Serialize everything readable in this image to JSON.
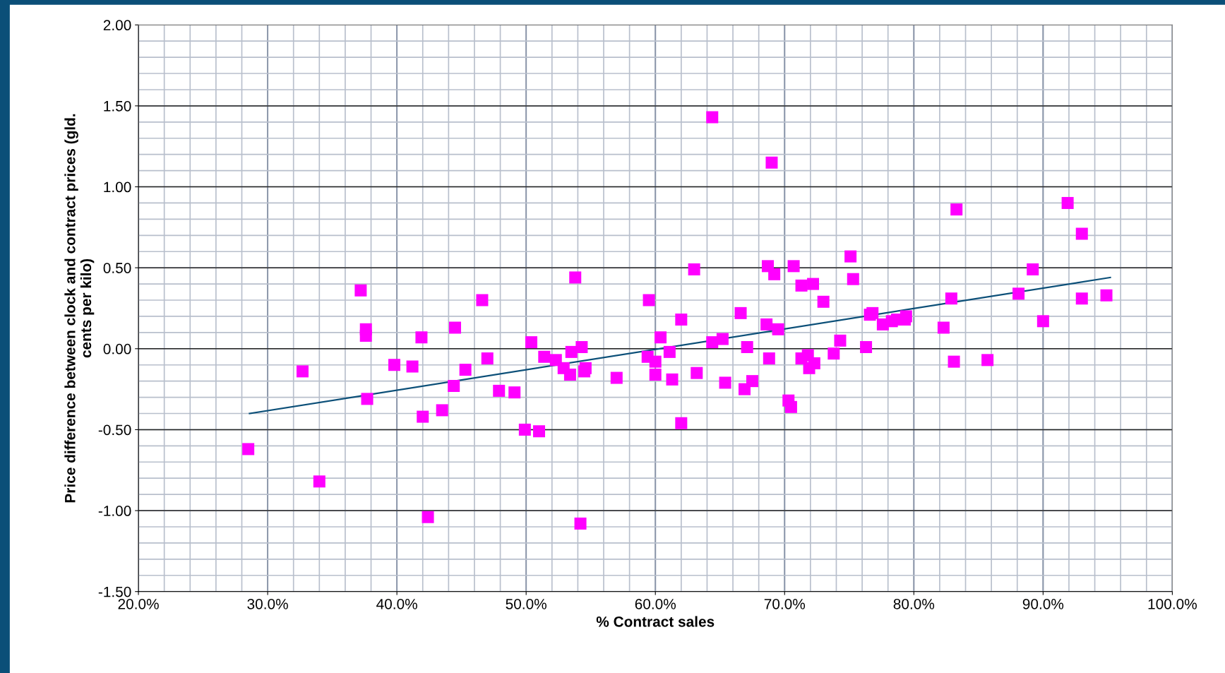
{
  "chart_data": {
    "type": "scatter",
    "xlabel": "% Contract sales",
    "ylabel": "Price difference between clock and contract prices (gld.\ncents per kilo)",
    "xlim": [
      20,
      100
    ],
    "xticks": [
      {
        "value": 20,
        "label": "20.0%"
      },
      {
        "value": 30,
        "label": "30.0%"
      },
      {
        "value": 40,
        "label": "40.0%"
      },
      {
        "value": 50,
        "label": "50.0%"
      },
      {
        "value": 60,
        "label": "60.0%"
      },
      {
        "value": 70,
        "label": "70.0%"
      },
      {
        "value": 80,
        "label": "80.0%"
      },
      {
        "value": 90,
        "label": "90.0%"
      },
      {
        "value": 100,
        "label": "100.0%"
      }
    ],
    "ylim": [
      -1.5,
      2.0
    ],
    "yticks": [
      {
        "value": -1.5,
        "label": "-1.50"
      },
      {
        "value": -1.0,
        "label": "-1.00"
      },
      {
        "value": -0.5,
        "label": "-0.50"
      },
      {
        "value": 0,
        "label": "0.00"
      },
      {
        "value": 0.5,
        "label": "0.50"
      },
      {
        "value": 1.0,
        "label": "1.00"
      },
      {
        "value": 1.5,
        "label": "1.50"
      },
      {
        "value": 2.0,
        "label": "2.00"
      }
    ],
    "grid": true,
    "series": [
      {
        "color": "#ff00ff",
        "marker": "square",
        "x": [
          28.5,
          32.7,
          34.0,
          37.2,
          37.6,
          37.6,
          37.7,
          39.8,
          41.2,
          41.9,
          42.0,
          42.4,
          43.5,
          44.5,
          44.4,
          45.3,
          46.6,
          47.0,
          47.9,
          49.1,
          49.9,
          50.4,
          51.0,
          51.4,
          52.3,
          52.9,
          53.5,
          53.4,
          53.8,
          54.2,
          54.3,
          54.5,
          54.6,
          57.0,
          59.5,
          59.4,
          60.0,
          60.0,
          60.4,
          61.1,
          61.3,
          62.0,
          62.0,
          63.0,
          63.2,
          64.4,
          64.4,
          65.2,
          65.4,
          66.6,
          66.9,
          67.1,
          67.5,
          68.6,
          68.7,
          68.8,
          69.0,
          69.2,
          69.5,
          70.3,
          70.5,
          70.7,
          71.3,
          71.3,
          71.8,
          71.9,
          72.2,
          72.3,
          73.0,
          73.8,
          74.3,
          75.1,
          75.3,
          76.3,
          76.6,
          76.8,
          77.6,
          78.3,
          78.7,
          79.3,
          79.4,
          82.3,
          82.9,
          83.1,
          83.3,
          85.7,
          88.1,
          89.2,
          90.0,
          91.9,
          93.0,
          93.0,
          94.9
        ],
        "values": [
          -0.62,
          -0.14,
          -0.82,
          0.36,
          0.12,
          0.08,
          -0.31,
          -0.1,
          -0.11,
          0.07,
          -0.42,
          -1.04,
          -0.38,
          0.13,
          -0.23,
          -0.13,
          0.3,
          -0.06,
          -0.26,
          -0.27,
          -0.5,
          0.04,
          -0.51,
          -0.05,
          -0.07,
          -0.12,
          -0.02,
          -0.16,
          0.44,
          -1.08,
          0.01,
          -0.14,
          -0.12,
          -0.18,
          0.3,
          -0.05,
          -0.08,
          -0.16,
          0.07,
          -0.02,
          -0.19,
          0.18,
          -0.46,
          0.49,
          -0.15,
          1.43,
          0.04,
          0.06,
          -0.21,
          0.22,
          -0.25,
          0.01,
          -0.2,
          0.15,
          0.51,
          -0.06,
          1.15,
          0.46,
          0.12,
          -0.32,
          -0.36,
          0.51,
          0.39,
          -0.06,
          -0.04,
          -0.12,
          0.4,
          -0.09,
          0.29,
          -0.03,
          0.05,
          0.57,
          0.43,
          0.01,
          0.21,
          0.22,
          0.15,
          0.17,
          0.18,
          0.18,
          0.2,
          0.13,
          0.31,
          -0.08,
          0.86,
          -0.07,
          0.34,
          0.49,
          0.17,
          0.9,
          0.71,
          0.31,
          0.33
        ]
      },
      {
        "type": "line",
        "color": "#0b4f78",
        "marker": "none",
        "line_style": "solid",
        "x": [
          28.6,
          95.2
        ],
        "values": [
          -0.4,
          0.44
        ]
      }
    ]
  }
}
